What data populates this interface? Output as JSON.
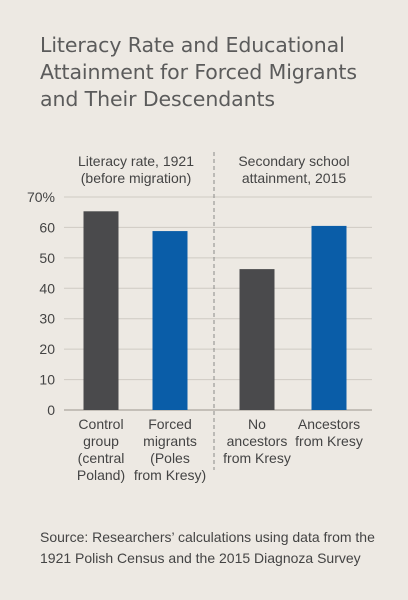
{
  "title": "Literacy Rate and Educational Attainment for Forced Migrants and Their Descendants",
  "source": "Source: Researchers’ calculations using data from the 1921 Polish Census and the 2015 Diagnoza Survey",
  "colors": {
    "gray": "#4a4a4c",
    "blue": "#0a5da8",
    "grid": "#cfcac3",
    "divider": "#8a8a8a",
    "background": "#ede9e3"
  },
  "chart_data": {
    "type": "bar",
    "title": "Literacy Rate and Educational Attainment for Forced Migrants and Their Descendants",
    "xlabel": "",
    "ylabel": "",
    "ylim": [
      0,
      70
    ],
    "yticks": [
      "0",
      "10",
      "20",
      "30",
      "40",
      "50",
      "60",
      "70%"
    ],
    "yticks_values": [
      0,
      10,
      20,
      30,
      40,
      50,
      60,
      70
    ],
    "grid": true,
    "groups": [
      {
        "label_lines": [
          "Literacy rate, 1921",
          "(before migration)"
        ],
        "bars": [
          {
            "label_lines": [
              "Control",
              "group",
              "(central",
              "Poland)"
            ],
            "value": 65.3,
            "color": "#4a4a4c"
          },
          {
            "label_lines": [
              "Forced",
              "migrants",
              "(Poles",
              "from Kresy)"
            ],
            "value": 58.8,
            "color": "#0a5da8"
          }
        ]
      },
      {
        "label_lines": [
          "Secondary school",
          "attainment, 2015"
        ],
        "bars": [
          {
            "label_lines": [
              "No",
              "ancestors",
              "from Kresy"
            ],
            "value": 46.3,
            "color": "#4a4a4c"
          },
          {
            "label_lines": [
              "Ancestors",
              "from Kresy"
            ],
            "value": 60.5,
            "color": "#0a5da8"
          }
        ]
      }
    ]
  }
}
